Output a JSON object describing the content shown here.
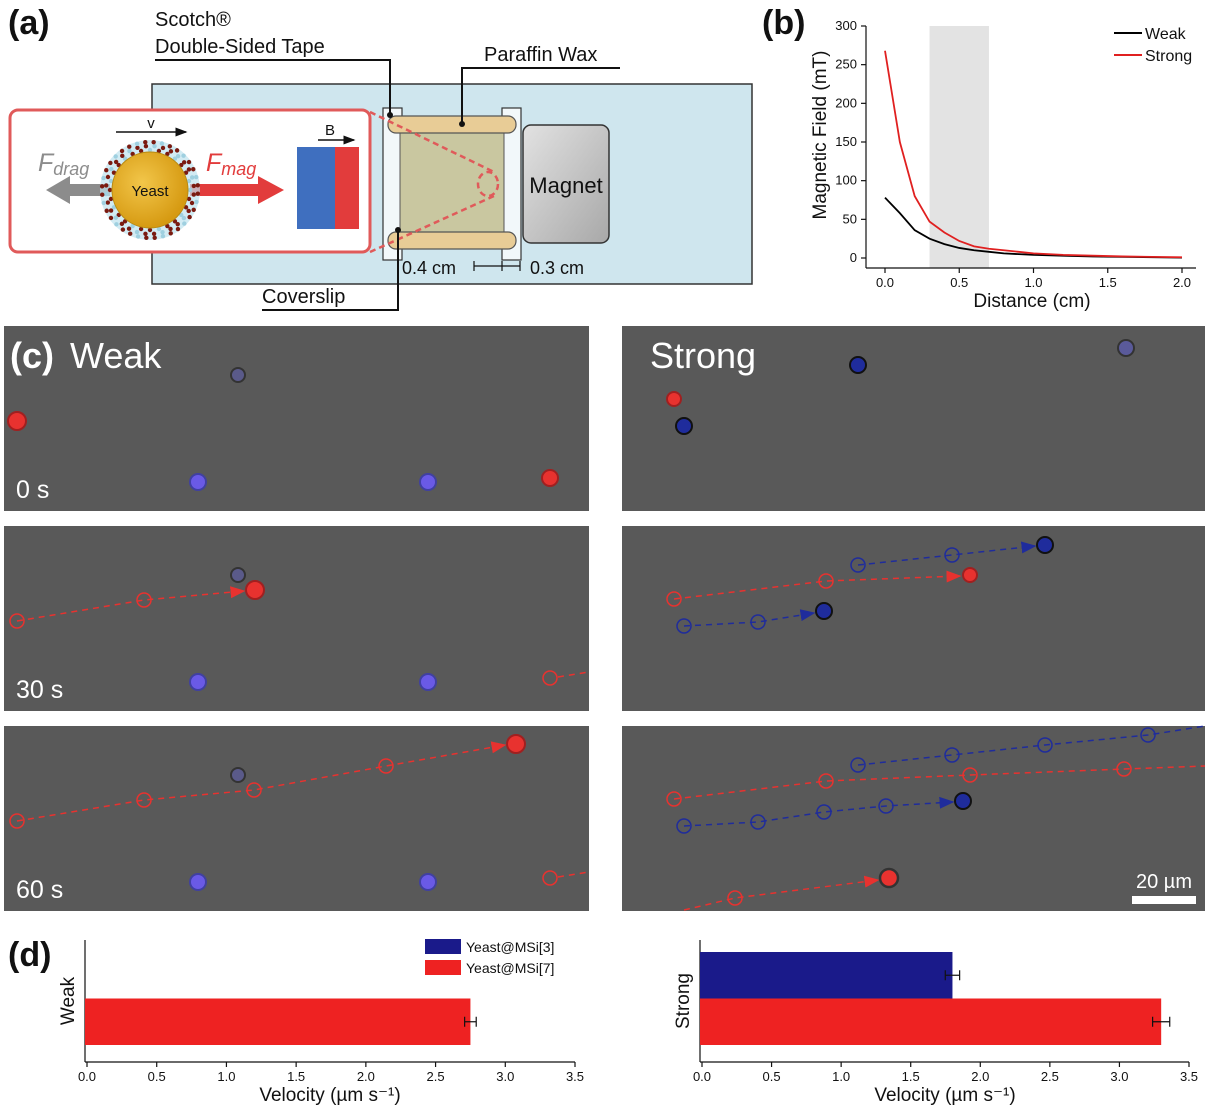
{
  "panels": {
    "a": "(a)",
    "b": "(b)",
    "c": "(c)",
    "d": "(d)"
  },
  "schematic": {
    "tape_label_1": "Scotch®",
    "tape_label_2": "Double-Sided Tape",
    "wax_label": "Paraffin Wax",
    "coverslip_label": "Coverslip",
    "magnet_label": "Magnet",
    "yeast_label": "Yeast",
    "v_label": "v",
    "b_label": "B",
    "fdrag_main": "F",
    "fdrag_sub": "drag",
    "fmag_main": "F",
    "fmag_sub": "mag",
    "dim_left": "0.4 cm",
    "dim_right": "0.3 cm",
    "colors": {
      "slide": "#cfe6ee",
      "chamber": "#c9c7a0",
      "wax": "#e8cc96",
      "magnet": "#c8c8c8",
      "inset_border": "#e05a5a",
      "yeast": "#e8b52a",
      "b_blue": "#3f6fbf",
      "b_red": "#e23c3c"
    }
  },
  "microscopy": {
    "weak_label": "Weak",
    "strong_label": "Strong",
    "times": [
      "0 s",
      "30 s",
      "60 s"
    ],
    "scale_bar": "20 µm",
    "colors": {
      "background": "#5a5a5a",
      "red_particle": "#e8322f",
      "blue_particle": "#1f2c9c",
      "blue_weak": "#5a5ae0"
    }
  },
  "chart_data": [
    {
      "type": "line",
      "title": "",
      "xlabel": "Distance (cm)",
      "ylabel": "Magnetic Field (mT)",
      "xlim": [
        0,
        2.0
      ],
      "ylim": [
        0,
        300
      ],
      "xticks": [
        "0.0",
        "0.5",
        "1.0",
        "1.5",
        "2.0"
      ],
      "yticks": [
        "0",
        "50",
        "100",
        "150",
        "200",
        "250",
        "300"
      ],
      "shaded_region": [
        0.3,
        0.7
      ],
      "legend_position": "top-right",
      "series": [
        {
          "name": "Weak",
          "color": "#000000",
          "x": [
            0.0,
            0.1,
            0.2,
            0.3,
            0.4,
            0.5,
            0.6,
            0.7,
            0.8,
            0.9,
            1.0,
            1.2,
            1.4,
            1.6,
            1.8,
            2.0
          ],
          "y": [
            78,
            58,
            36,
            25,
            18,
            13,
            10,
            8,
            6,
            5,
            4,
            3,
            2,
            1.5,
            1,
            0.5
          ]
        },
        {
          "name": "Strong",
          "color": "#e02020",
          "x": [
            0.0,
            0.1,
            0.2,
            0.3,
            0.4,
            0.5,
            0.6,
            0.7,
            0.8,
            0.9,
            1.0,
            1.2,
            1.4,
            1.6,
            1.8,
            2.0
          ],
          "y": [
            268,
            150,
            80,
            47,
            33,
            22,
            15,
            12,
            10,
            8,
            6,
            4,
            3,
            2,
            1.5,
            1
          ]
        }
      ]
    },
    {
      "type": "bar",
      "orientation": "horizontal",
      "title": "",
      "xlabel": "Velocity (µm s⁻¹)",
      "ylabel": "Weak",
      "xlim": [
        0,
        3.5
      ],
      "xticks": [
        "0.0",
        "0.5",
        "1.0",
        "1.5",
        "2.0",
        "2.5",
        "3.0",
        "3.5"
      ],
      "legend_position": "top-right",
      "series": [
        {
          "name": "Yeast@MSi[3]",
          "color": "#1a1a8a",
          "value": 0,
          "error": 0
        },
        {
          "name": "Yeast@MSi[7]",
          "color": "#ee2222",
          "value": 2.75,
          "error": 0.02
        }
      ]
    },
    {
      "type": "bar",
      "orientation": "horizontal",
      "title": "",
      "xlabel": "Velocity (µm s⁻¹)",
      "ylabel": "Strong",
      "xlim": [
        0,
        3.5
      ],
      "xticks": [
        "0.0",
        "0.5",
        "1.0",
        "1.5",
        "2.0",
        "2.5",
        "3.0",
        "3.5"
      ],
      "series": [
        {
          "name": "Yeast@MSi[3]",
          "color": "#1a1a8a",
          "value": 1.8,
          "error": 0.03
        },
        {
          "name": "Yeast@MSi[7]",
          "color": "#ee2222",
          "value": 3.3,
          "error": 0.04
        }
      ]
    }
  ]
}
